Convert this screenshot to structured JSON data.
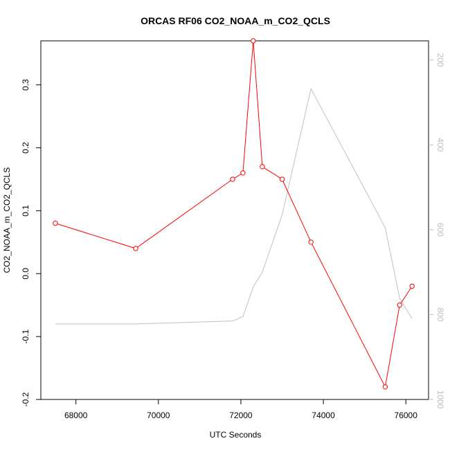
{
  "chart_data": {
    "type": "line",
    "title": "ORCAS RF06 CO2_NOAA_m_CO2_QCLS",
    "xlabel": "UTC Seconds",
    "ylabel": "CO2_NOAA_m_CO2_QCLS",
    "xlim": [
      67150,
      76550
    ],
    "ylim": [
      -0.2,
      0.37
    ],
    "y2lim": [
      1000,
      155
    ],
    "x_ticks": [
      68000,
      70000,
      72000,
      74000,
      76000
    ],
    "y_ticks": [
      -0.2,
      -0.1,
      0.0,
      0.1,
      0.2,
      0.3
    ],
    "y_tick_labels": [
      "-0.2",
      "-0.1",
      "0.0",
      "0.1",
      "0.2",
      "0.3"
    ],
    "y2_ticks": [
      200,
      400,
      600,
      800,
      1000
    ],
    "series": [
      {
        "role": "primary",
        "color": "#ff0000",
        "marker": "open-circle",
        "x": [
          67500,
          69450,
          71800,
          72050,
          72300,
          72520,
          73000,
          73700,
          75500,
          75850,
          76150
        ],
        "y": [
          0.08,
          0.04,
          0.15,
          0.16,
          0.37,
          0.17,
          0.15,
          0.05,
          -0.18,
          -0.05,
          -0.02
        ]
      },
      {
        "role": "secondary",
        "axis": "right",
        "color": "#c0c0c0",
        "x": [
          67500,
          69450,
          71800,
          72050,
          72300,
          72520,
          73000,
          73700,
          75500,
          75850,
          76150
        ],
        "y": [
          822,
          822,
          815,
          805,
          735,
          700,
          565,
          268,
          595,
          762,
          810
        ]
      }
    ]
  }
}
